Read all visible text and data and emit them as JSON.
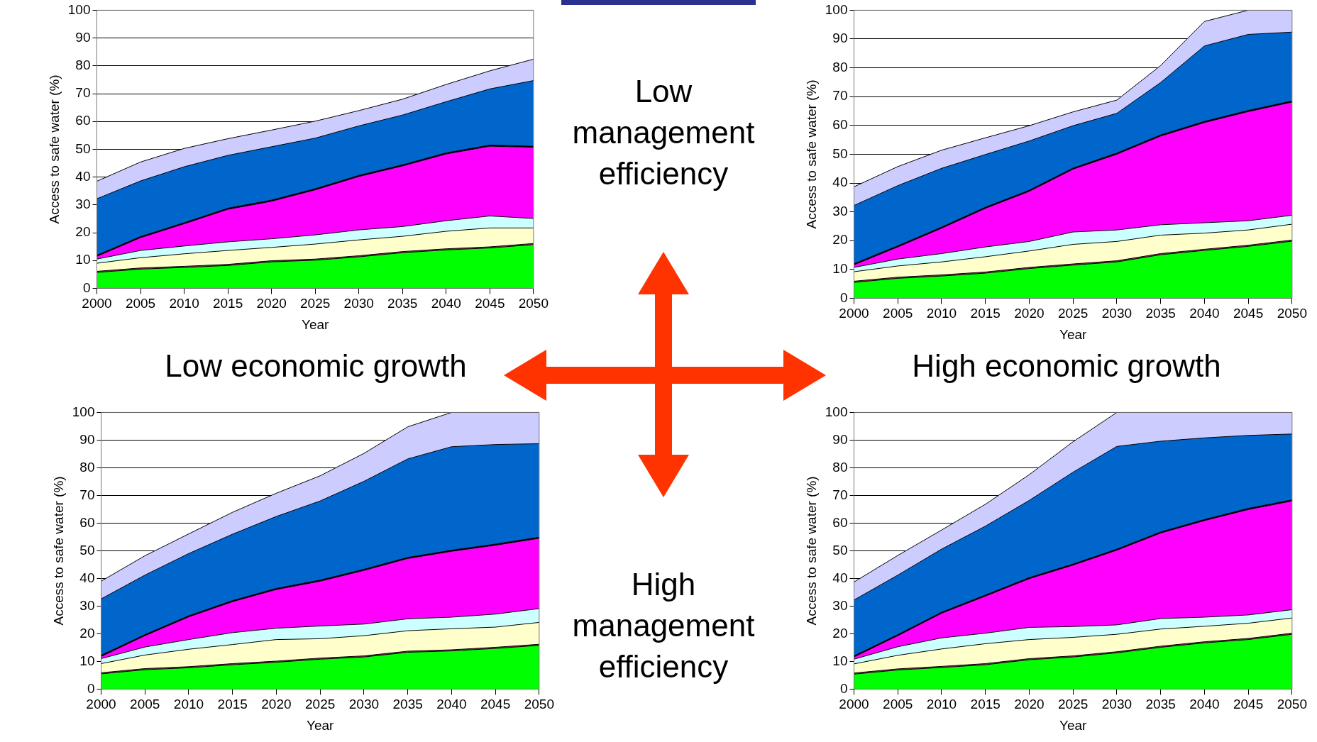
{
  "chart_data": [
    {
      "type": "area",
      "stacked": true,
      "grid": "y",
      "xlabel": "Year",
      "ylabel": "Access to safe water (%)",
      "ylim": [
        0,
        100
      ],
      "yticks": [
        0,
        10,
        20,
        30,
        40,
        50,
        60,
        70,
        80,
        90,
        100
      ],
      "categories": [
        "2000",
        "2005",
        "2010",
        "2015",
        "2020",
        "2025",
        "2030",
        "2035",
        "2040",
        "2045",
        "2050"
      ],
      "series": [
        {
          "color": "#00ff00",
          "values": [
            5.7,
            6.9,
            7.5,
            8.2,
            9.5,
            10.1,
            11.3,
            12.8,
            13.8,
            14.5,
            15.7
          ]
        },
        {
          "color": "#993366",
          "values": [
            0.4,
            0.4,
            0.4,
            0.4,
            0.4,
            0.4,
            0.4,
            0.4,
            0.4,
            0.4,
            0.4
          ]
        },
        {
          "color": "#ffffcc",
          "values": [
            2.9,
            3.7,
            4.5,
            5.0,
            4.8,
            5.4,
            5.7,
            5.5,
            6.3,
            6.8,
            5.6
          ]
        },
        {
          "color": "#ccffff",
          "values": [
            1.5,
            2.6,
            2.8,
            3.1,
            3.1,
            3.3,
            3.6,
            3.5,
            3.8,
            4.3,
            3.4
          ]
        },
        {
          "color": "#ff00ff",
          "values": [
            1.0,
            4.6,
            8.0,
            11.7,
            13.5,
            16.2,
            19.2,
            21.8,
            24.0,
            25.1,
            25.6
          ]
        },
        {
          "color": "#000000",
          "values": [
            0.4,
            0.4,
            0.4,
            0.4,
            0.4,
            0.4,
            0.4,
            0.4,
            0.4,
            0.4,
            0.4
          ]
        },
        {
          "color": "#0066cc",
          "values": [
            20.3,
            20.0,
            20.1,
            19.0,
            19.2,
            18.2,
            17.8,
            17.9,
            18.4,
            20.2,
            23.6
          ]
        },
        {
          "color": "#ccccff",
          "values": [
            6.3,
            6.8,
            6.6,
            6.0,
            6.0,
            6.1,
            5.5,
            5.7,
            6.2,
            6.5,
            7.7
          ]
        }
      ]
    },
    {
      "type": "area",
      "stacked": true,
      "grid": "y",
      "xlabel": "Year",
      "ylabel": "Access to safe water (%)",
      "ylim": [
        0,
        100
      ],
      "yticks": [
        0,
        10,
        20,
        30,
        40,
        50,
        60,
        70,
        80,
        90,
        100
      ],
      "categories": [
        "2000",
        "2005",
        "2010",
        "2015",
        "2020",
        "2025",
        "2030",
        "2035",
        "2040",
        "2045",
        "2050"
      ],
      "series": [
        {
          "color": "#00ff00",
          "values": [
            5.5,
            6.9,
            7.7,
            8.7,
            10.3,
            11.5,
            12.6,
            15.1,
            16.6,
            18.0,
            19.8
          ]
        },
        {
          "color": "#993366",
          "values": [
            0.4,
            0.4,
            0.4,
            0.4,
            0.4,
            0.4,
            0.4,
            0.4,
            0.4,
            0.4,
            0.4
          ]
        },
        {
          "color": "#ffffcc",
          "values": [
            3.3,
            3.9,
            4.5,
            5.3,
            5.7,
            6.8,
            6.7,
            6.4,
            5.6,
            5.3,
            5.5
          ]
        },
        {
          "color": "#ccffff",
          "values": [
            1.5,
            2.4,
            2.9,
            3.4,
            3.3,
            4.3,
            4.0,
            3.6,
            3.6,
            3.2,
            3.1
          ]
        },
        {
          "color": "#ff00ff",
          "values": [
            0.9,
            4.2,
            8.8,
            13.4,
            17.4,
            21.8,
            26.3,
            30.8,
            34.8,
            37.9,
            39.3
          ]
        },
        {
          "color": "#000000",
          "values": [
            0.4,
            0.4,
            0.4,
            0.4,
            0.4,
            0.4,
            0.4,
            0.4,
            0.4,
            0.4,
            0.4
          ]
        },
        {
          "color": "#0066cc",
          "values": [
            20.2,
            20.9,
            20.4,
            18.3,
            17.1,
            14.7,
            13.8,
            18.2,
            26.2,
            26.4,
            23.9
          ]
        },
        {
          "color": "#ccccff",
          "values": [
            6.5,
            6.6,
            6.3,
            5.8,
            5.3,
            4.8,
            4.6,
            5.9,
            8.5,
            8.4,
            7.6
          ]
        }
      ]
    },
    {
      "type": "area",
      "stacked": true,
      "grid": "y",
      "xlabel": "Year",
      "ylabel": "Access to safe water (%)",
      "ylim": [
        0,
        100
      ],
      "yticks": [
        0,
        10,
        20,
        30,
        40,
        50,
        60,
        70,
        80,
        90,
        100
      ],
      "categories": [
        "2000",
        "2005",
        "2010",
        "2015",
        "2020",
        "2025",
        "2030",
        "2035",
        "2040",
        "2045",
        "2050"
      ],
      "series": [
        {
          "color": "#00ff00",
          "values": [
            5.5,
            7.0,
            7.7,
            8.8,
            9.7,
            10.8,
            11.6,
            13.3,
            13.8,
            14.7,
            15.8
          ]
        },
        {
          "color": "#993366",
          "values": [
            0.4,
            0.4,
            0.4,
            0.4,
            0.4,
            0.4,
            0.4,
            0.4,
            0.4,
            0.4,
            0.4
          ]
        },
        {
          "color": "#ffffcc",
          "values": [
            3.3,
            4.9,
            6.3,
            6.9,
            7.8,
            7.0,
            7.3,
            7.4,
            7.6,
            7.3,
            7.9
          ]
        },
        {
          "color": "#ccffff",
          "values": [
            1.8,
            2.9,
            3.5,
            4.3,
            4.1,
            4.6,
            4.2,
            4.3,
            4.2,
            4.7,
            5.0
          ]
        },
        {
          "color": "#ff00ff",
          "values": [
            0.8,
            4.1,
            8.2,
            11.2,
            14.0,
            16.2,
            19.4,
            21.8,
            23.8,
            24.9,
            25.4
          ]
        },
        {
          "color": "#000000",
          "values": [
            0.4,
            0.4,
            0.4,
            0.4,
            0.4,
            0.4,
            0.4,
            0.4,
            0.4,
            0.4,
            0.4
          ]
        },
        {
          "color": "#0066cc",
          "values": [
            20.4,
            21.5,
            22.5,
            24.0,
            26.0,
            28.6,
            31.8,
            35.6,
            37.4,
            36.0,
            33.8
          ]
        },
        {
          "color": "#ccccff",
          "values": [
            6.4,
            7.0,
            7.1,
            7.9,
            8.4,
            9.1,
            10.1,
            11.6,
            12.4,
            11.6,
            11.3
          ]
        }
      ]
    },
    {
      "type": "area",
      "stacked": true,
      "grid": "y",
      "xlabel": "Year",
      "ylabel": "Access to safe water (%)",
      "ylim": [
        0,
        100
      ],
      "yticks": [
        0,
        10,
        20,
        30,
        40,
        50,
        60,
        70,
        80,
        90,
        100
      ],
      "categories": [
        "2000",
        "2005",
        "2010",
        "2015",
        "2020",
        "2025",
        "2030",
        "2035",
        "2040",
        "2045",
        "2050"
      ],
      "series": [
        {
          "color": "#00ff00",
          "values": [
            5.4,
            6.9,
            7.8,
            8.8,
            10.6,
            11.6,
            13.1,
            15.1,
            16.7,
            17.9,
            19.8
          ]
        },
        {
          "color": "#993366",
          "values": [
            0.4,
            0.4,
            0.4,
            0.4,
            0.4,
            0.4,
            0.4,
            0.4,
            0.4,
            0.4,
            0.4
          ]
        },
        {
          "color": "#ffffcc",
          "values": [
            3.3,
            4.9,
            6.3,
            7.2,
            6.9,
            6.7,
            6.3,
            6.2,
            5.6,
            5.5,
            5.5
          ]
        },
        {
          "color": "#ccffff",
          "values": [
            1.7,
            3.1,
            4.0,
            3.8,
            4.4,
            3.9,
            3.4,
            3.8,
            3.3,
            3.0,
            3.0
          ]
        },
        {
          "color": "#ff00ff",
          "values": [
            0.8,
            4.0,
            8.9,
            13.4,
            17.6,
            22.2,
            27.0,
            30.9,
            34.9,
            38.1,
            39.3
          ]
        },
        {
          "color": "#000000",
          "values": [
            0.4,
            0.4,
            0.4,
            0.4,
            0.4,
            0.4,
            0.4,
            0.4,
            0.4,
            0.4,
            0.4
          ]
        },
        {
          "color": "#0066cc",
          "values": [
            20.2,
            21.5,
            22.8,
            24.9,
            27.9,
            33.2,
            37.1,
            32.8,
            29.5,
            26.4,
            23.8
          ]
        },
        {
          "color": "#ccccff",
          "values": [
            6.5,
            7.1,
            6.9,
            7.9,
            9.3,
            11.0,
            12.3,
            10.4,
            9.2,
            8.3,
            7.8
          ]
        }
      ]
    },
    {
      "type": "other",
      "annotations": [
        "Low management efficiency",
        "High management efficiency",
        "Low economic growth",
        "High economic growth"
      ]
    }
  ]
}
